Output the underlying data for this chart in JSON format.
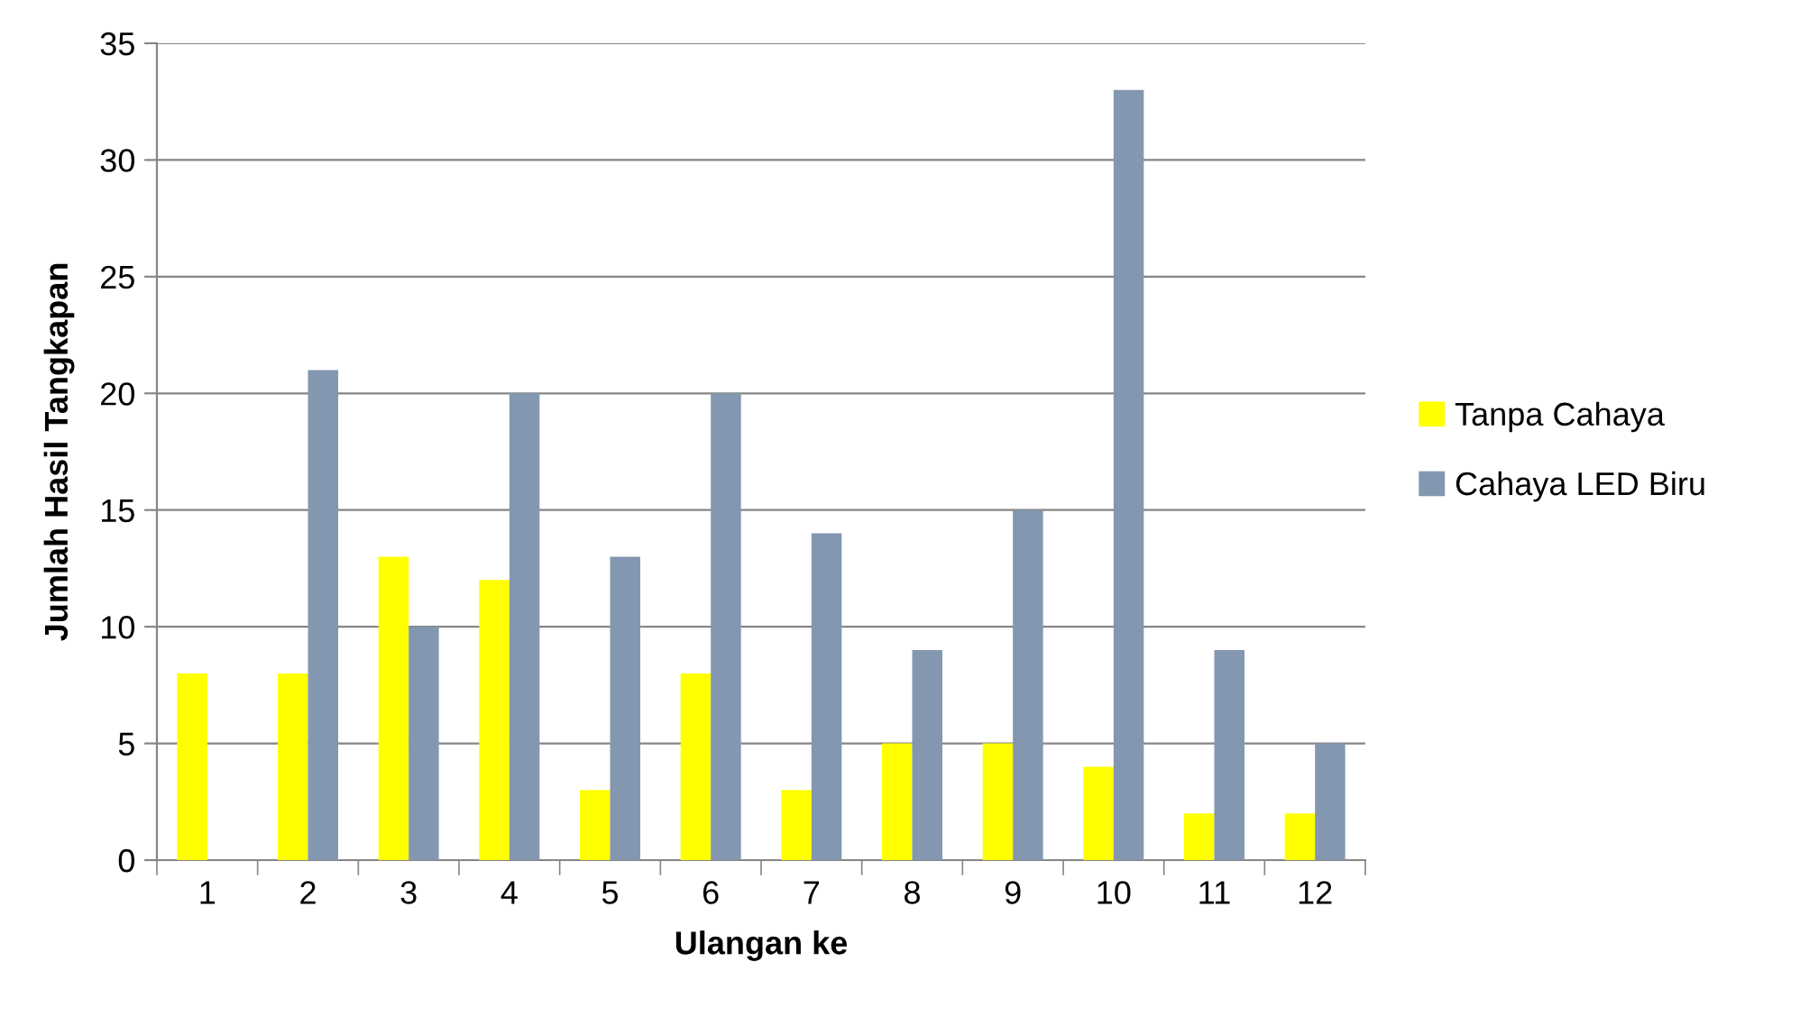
{
  "chart_data": {
    "type": "bar",
    "xlabel": "Ulangan ke",
    "ylabel": "Jumlah Hasil Tangkapan",
    "categories": [
      "1",
      "2",
      "3",
      "4",
      "5",
      "6",
      "7",
      "8",
      "9",
      "10",
      "11",
      "12"
    ],
    "series": [
      {
        "name": "Tanpa Cahaya",
        "color": "#ffff00",
        "values": [
          8,
          8,
          13,
          12,
          3,
          8,
          3,
          5,
          5,
          4,
          2,
          2
        ]
      },
      {
        "name": "Cahaya LED Biru",
        "color": "#8497b0",
        "values": [
          0,
          21,
          10,
          20,
          13,
          20,
          14,
          9,
          15,
          33,
          9,
          5
        ]
      }
    ],
    "ylim": [
      0,
      35
    ],
    "yticks": [
      0,
      5,
      10,
      15,
      20,
      25,
      30,
      35
    ],
    "grid": "y",
    "legend": "right"
  }
}
